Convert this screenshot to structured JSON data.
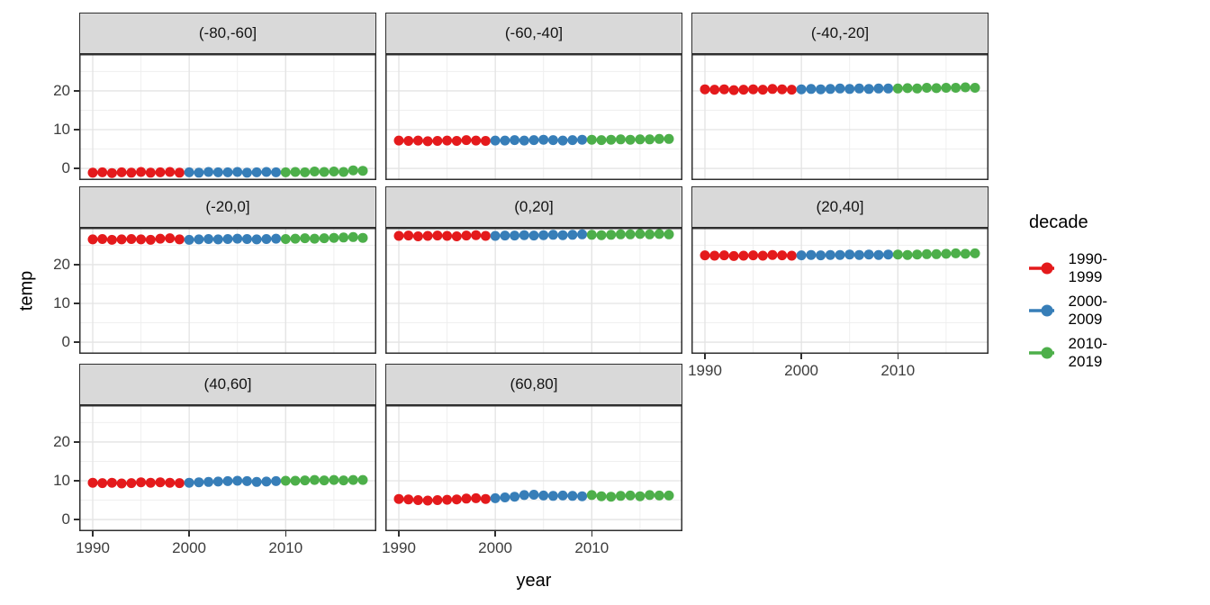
{
  "axes": {
    "x_label": "year",
    "y_label": "temp"
  },
  "legend": {
    "title": "decade",
    "entries": [
      {
        "label": "1990-1999",
        "color": "#E41A1C"
      },
      {
        "label": "2000-2009",
        "color": "#377EB8"
      },
      {
        "label": "2010-2019",
        "color": "#4DAF4A"
      }
    ]
  },
  "style": {
    "strip_fill": "#d9d9d9",
    "panel_border": "#2f2f2f",
    "grid_major": "#e3e3e3",
    "grid_minor": "#efefef",
    "tick_text": "#3d3d3d"
  },
  "chart_data": {
    "type": "scatter",
    "title": "",
    "xlabel": "year",
    "ylabel": "temp",
    "facet_variable": "latitude band",
    "color_variable": "decade",
    "x_ticks": [
      1990,
      2000,
      2010
    ],
    "x_minor": [
      1995,
      2005,
      2015
    ],
    "y_ticks": [
      0,
      10,
      20
    ],
    "y_minor": [
      5,
      15,
      25
    ],
    "x_range": [
      1988.6,
      2019.4
    ],
    "y_range": [
      -3,
      29.5
    ],
    "years": [
      1990,
      1991,
      1992,
      1993,
      1994,
      1995,
      1996,
      1997,
      1998,
      1999,
      2000,
      2001,
      2002,
      2003,
      2004,
      2005,
      2006,
      2007,
      2008,
      2009,
      2010,
      2011,
      2012,
      2013,
      2014,
      2015,
      2016,
      2017,
      2018
    ],
    "facets": [
      {
        "label": "(-80,-60]",
        "temps": [
          -1.1,
          -1.0,
          -1.2,
          -1.0,
          -1.1,
          -0.9,
          -1.1,
          -1.0,
          -0.9,
          -1.1,
          -1.0,
          -1.1,
          -0.9,
          -1.0,
          -1.0,
          -0.9,
          -1.1,
          -1.0,
          -0.9,
          -1.0,
          -1.0,
          -0.9,
          -1.0,
          -0.8,
          -0.9,
          -0.8,
          -0.9,
          -0.5,
          -0.6
        ]
      },
      {
        "label": "(-60,-40]",
        "temps": [
          7.2,
          7.1,
          7.2,
          7.0,
          7.1,
          7.2,
          7.1,
          7.3,
          7.2,
          7.1,
          7.2,
          7.2,
          7.3,
          7.2,
          7.3,
          7.4,
          7.3,
          7.2,
          7.3,
          7.4,
          7.4,
          7.3,
          7.4,
          7.5,
          7.4,
          7.5,
          7.5,
          7.6,
          7.6
        ]
      },
      {
        "label": "(-40,-20]",
        "temps": [
          20.4,
          20.3,
          20.4,
          20.2,
          20.3,
          20.4,
          20.3,
          20.5,
          20.4,
          20.3,
          20.4,
          20.5,
          20.4,
          20.5,
          20.6,
          20.5,
          20.6,
          20.5,
          20.6,
          20.6,
          20.6,
          20.7,
          20.6,
          20.8,
          20.7,
          20.8,
          20.8,
          20.9,
          20.8
        ]
      },
      {
        "label": "(-20,0]",
        "temps": [
          26.5,
          26.6,
          26.4,
          26.5,
          26.6,
          26.5,
          26.4,
          26.7,
          26.8,
          26.5,
          26.4,
          26.5,
          26.6,
          26.5,
          26.6,
          26.7,
          26.6,
          26.5,
          26.6,
          26.7,
          26.6,
          26.7,
          26.8,
          26.7,
          26.8,
          26.9,
          27.0,
          27.1,
          26.9
        ]
      },
      {
        "label": "(0,20]",
        "temps": [
          27.4,
          27.5,
          27.3,
          27.4,
          27.5,
          27.4,
          27.3,
          27.5,
          27.6,
          27.4,
          27.4,
          27.5,
          27.5,
          27.6,
          27.5,
          27.6,
          27.7,
          27.6,
          27.7,
          27.8,
          27.7,
          27.6,
          27.7,
          27.8,
          27.8,
          27.9,
          27.8,
          27.9,
          27.8
        ]
      },
      {
        "label": "(20,40]",
        "temps": [
          22.4,
          22.3,
          22.4,
          22.2,
          22.3,
          22.4,
          22.3,
          22.5,
          22.4,
          22.3,
          22.4,
          22.5,
          22.4,
          22.5,
          22.5,
          22.6,
          22.5,
          22.6,
          22.5,
          22.6,
          22.6,
          22.5,
          22.6,
          22.7,
          22.7,
          22.8,
          22.9,
          22.8,
          22.9
        ]
      },
      {
        "label": "(40,60]",
        "temps": [
          9.5,
          9.4,
          9.5,
          9.3,
          9.4,
          9.6,
          9.5,
          9.6,
          9.5,
          9.4,
          9.5,
          9.6,
          9.7,
          9.8,
          9.9,
          10.0,
          9.9,
          9.7,
          9.8,
          9.9,
          10.0,
          10.0,
          10.1,
          10.2,
          10.1,
          10.2,
          10.1,
          10.2,
          10.2
        ]
      },
      {
        "label": "(60,80]",
        "temps": [
          5.3,
          5.2,
          5.0,
          4.9,
          5.0,
          5.1,
          5.2,
          5.4,
          5.5,
          5.3,
          5.5,
          5.7,
          5.9,
          6.3,
          6.4,
          6.2,
          6.1,
          6.2,
          6.1,
          6.0,
          6.3,
          6.0,
          5.9,
          6.1,
          6.2,
          6.0,
          6.3,
          6.2,
          6.2
        ]
      }
    ],
    "legend_position": "right",
    "grid": true
  }
}
